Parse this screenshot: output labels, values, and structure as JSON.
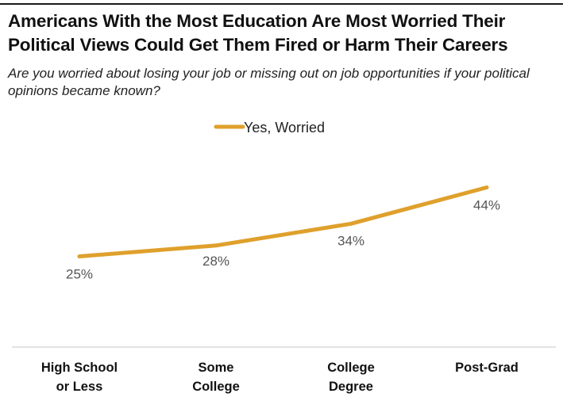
{
  "title": "Americans With the Most Education Are Most Worried Their Political Views Could Get Them Fired or Harm Their Careers",
  "subtitle": "Are you worried about losing your job or missing out on job opportunities if your political opinions became known?",
  "colors": {
    "line": "#dfa02c",
    "axis": "#d9d9d9",
    "label": "#555555",
    "category": "#111111"
  },
  "chart_data": {
    "type": "line",
    "title": "Americans With the Most Education Are Most Worried Their Political Views Could Get Them Fired or Harm Their Careers",
    "subtitle": "Are you worried about losing your job or missing out on job opportunities if your political opinions became known?",
    "categories": [
      [
        "High School",
        "or Less"
      ],
      [
        "Some",
        "College"
      ],
      [
        "College",
        "Degree"
      ],
      [
        "Post-Grad"
      ]
    ],
    "series": [
      {
        "name": "Yes, Worried",
        "values": [
          25,
          28,
          34,
          44
        ],
        "labels": [
          "25%",
          "28%",
          "34%",
          "44%"
        ]
      }
    ],
    "legend": "top-center",
    "grid": false,
    "ylim": [
      0,
      100
    ]
  }
}
